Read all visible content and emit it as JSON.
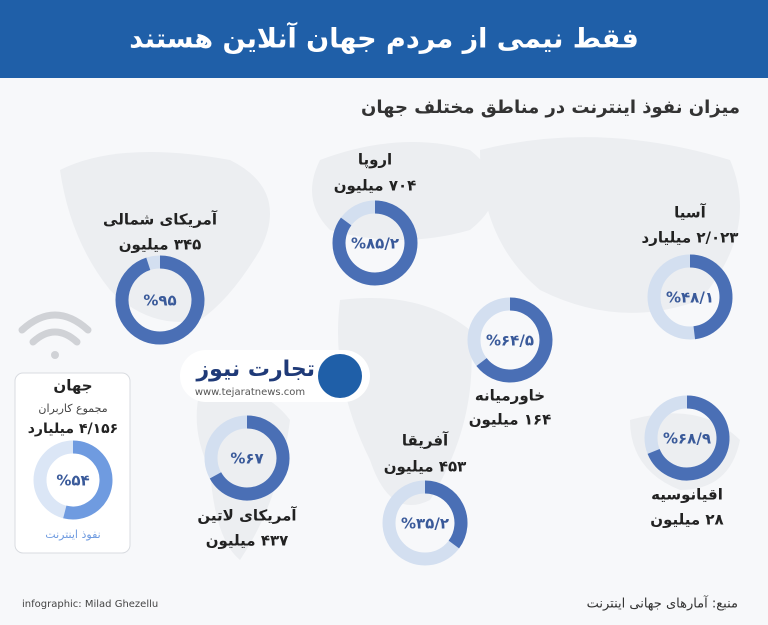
{
  "title": "فقط نیمی از مردم جهان آنلاین هستند",
  "subtitle": "میزان نفوذ اینترنت در مناطق مختلف جهان",
  "logo": {
    "name": "تجارت نیوز",
    "url": "www.tejaratnews.com"
  },
  "source": "منبع: آمارهای جهانی اینترنت",
  "credit": "infographic: Milad Ghezellu",
  "chart_data": [
    {
      "type": "donut",
      "title": "آمریکای شمالی",
      "subtitle": "۳۴۵ میلیون",
      "values": [
        95
      ],
      "value_labels": [
        "%۹۵"
      ],
      "color": "#4a6fb5",
      "track_color": "#d3dff0"
    },
    {
      "type": "donut",
      "title": "اروپا",
      "subtitle": "۷۰۴ میلیون",
      "values": [
        85.2
      ],
      "value_labels": [
        "%۸۵/۲"
      ],
      "color": "#4a6fb5",
      "track_color": "#d3dff0"
    },
    {
      "type": "donut",
      "title": "آسیا",
      "subtitle": "۲/۰۲۳ میلیارد",
      "values": [
        48.1
      ],
      "value_labels": [
        "%۴۸/۱"
      ],
      "color": "#4a6fb5",
      "track_color": "#d3dff0"
    },
    {
      "type": "donut",
      "title": "خاورمیانه",
      "subtitle": "۱۶۴ میلیون",
      "values": [
        64.5
      ],
      "value_labels": [
        "%۶۴/۵"
      ],
      "color": "#4a6fb5",
      "track_color": "#d3dff0"
    },
    {
      "type": "donut",
      "title": "آفریقا",
      "subtitle": "۴۵۳ میلیون",
      "values": [
        35.2
      ],
      "value_labels": [
        "%۳۵/۲"
      ],
      "color": "#4a6fb5",
      "track_color": "#d3dff0"
    },
    {
      "type": "donut",
      "title": "آمریکای لاتین",
      "subtitle": "۴۳۷ میلیون",
      "values": [
        67
      ],
      "value_labels": [
        "%۶۷"
      ],
      "color": "#4a6fb5",
      "track_color": "#d3dff0"
    },
    {
      "type": "donut",
      "title": "اقیانوسیه",
      "subtitle": "۲۸ میلیون",
      "values": [
        68.9
      ],
      "value_labels": [
        "%۶۸/۹"
      ],
      "color": "#4a6fb5",
      "track_color": "#d3dff0"
    },
    {
      "type": "donut",
      "title": "جهان",
      "caption": "مجموع کاربران",
      "subtitle": "۴/۱۵۶ میلیارد",
      "values": [
        54
      ],
      "value_labels": [
        "%۵۴"
      ],
      "value_caption": "نفوذ اینترنت",
      "color": "#6f9be0",
      "track_color": "#dbe6f6"
    }
  ]
}
